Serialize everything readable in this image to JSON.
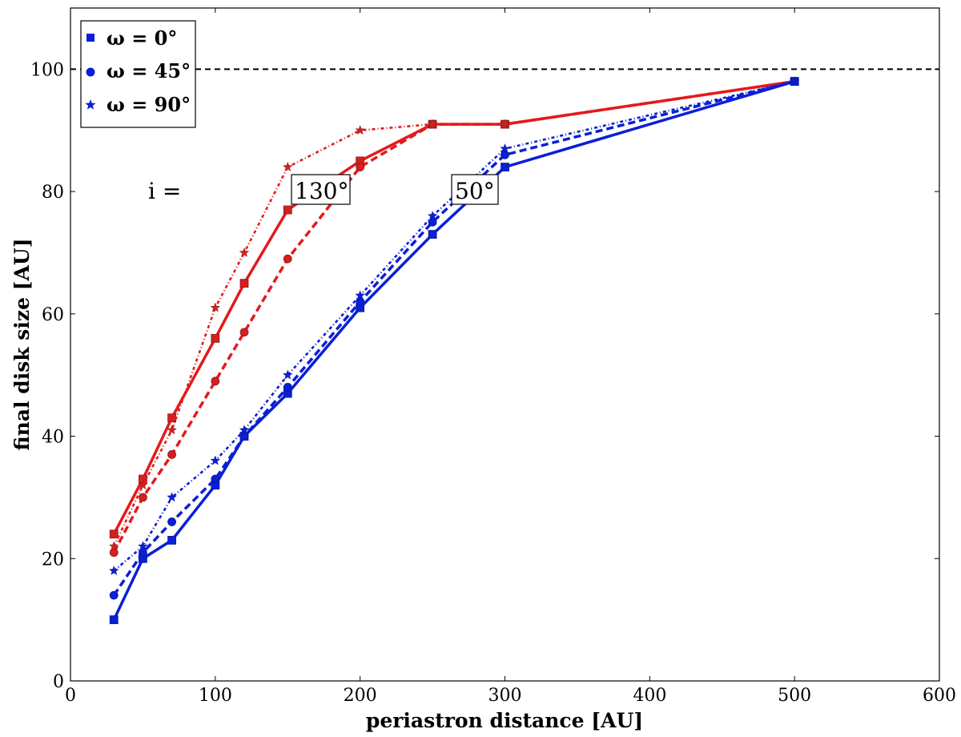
{
  "chart_data": {
    "type": "line",
    "xlabel": "periastron distance [AU]",
    "ylabel": "final disk size [AU]",
    "xlim": [
      0,
      600
    ],
    "ylim": [
      0,
      110
    ],
    "x_ticks": [
      0,
      100,
      200,
      300,
      400,
      500,
      600
    ],
    "y_ticks": [
      0,
      20,
      40,
      60,
      80,
      100
    ],
    "reference_line": {
      "y": 100,
      "style": "dashed",
      "color": "#000000"
    },
    "grid": false,
    "legend_position": "top-left",
    "legend": [
      {
        "label": "ω = 0°",
        "marker": "square"
      },
      {
        "label": "ω = 45°",
        "marker": "circle"
      },
      {
        "label": "ω = 90°",
        "marker": "star"
      }
    ],
    "annotations": {
      "i_label": "i =",
      "label_130": "130°",
      "label_50": "50°"
    },
    "series": [
      {
        "inclination": 130,
        "omega": 0,
        "color": "#e41a1c",
        "linestyle": "solid",
        "marker": "square",
        "x": [
          30,
          50,
          70,
          100,
          120,
          150,
          200,
          250,
          300,
          500
        ],
        "y": [
          24,
          33,
          43,
          56,
          65,
          77,
          85,
          91,
          91,
          98
        ]
      },
      {
        "inclination": 130,
        "omega": 45,
        "color": "#e41a1c",
        "linestyle": "dashed",
        "marker": "circle",
        "x": [
          30,
          50,
          70,
          100,
          120,
          150,
          200,
          250,
          300,
          500
        ],
        "y": [
          21,
          30,
          37,
          49,
          57,
          69,
          84,
          91,
          91,
          98
        ]
      },
      {
        "inclination": 130,
        "omega": 90,
        "color": "#e41a1c",
        "linestyle": "dotted",
        "marker": "star",
        "x": [
          30,
          50,
          70,
          100,
          120,
          150,
          200,
          250,
          300,
          500
        ],
        "y": [
          22,
          32,
          41,
          61,
          70,
          84,
          90,
          91,
          91,
          98
        ]
      },
      {
        "inclination": 50,
        "omega": 0,
        "color": "#0a1fd6",
        "linestyle": "solid",
        "marker": "square",
        "x": [
          30,
          50,
          70,
          100,
          120,
          150,
          200,
          250,
          300,
          500
        ],
        "y": [
          10,
          20,
          23,
          32,
          40,
          47,
          61,
          73,
          84,
          98
        ]
      },
      {
        "inclination": 50,
        "omega": 45,
        "color": "#0a1fd6",
        "linestyle": "dashed",
        "marker": "circle",
        "x": [
          30,
          50,
          70,
          100,
          120,
          150,
          200,
          250,
          300,
          500
        ],
        "y": [
          14,
          21,
          26,
          33,
          40,
          48,
          62,
          75,
          86,
          98
        ]
      },
      {
        "inclination": 50,
        "omega": 90,
        "color": "#0a1fd6",
        "linestyle": "dotted",
        "marker": "star",
        "x": [
          30,
          50,
          70,
          100,
          120,
          150,
          200,
          250,
          300,
          500
        ],
        "y": [
          18,
          22,
          30,
          36,
          41,
          50,
          63,
          76,
          87,
          98
        ]
      }
    ]
  }
}
